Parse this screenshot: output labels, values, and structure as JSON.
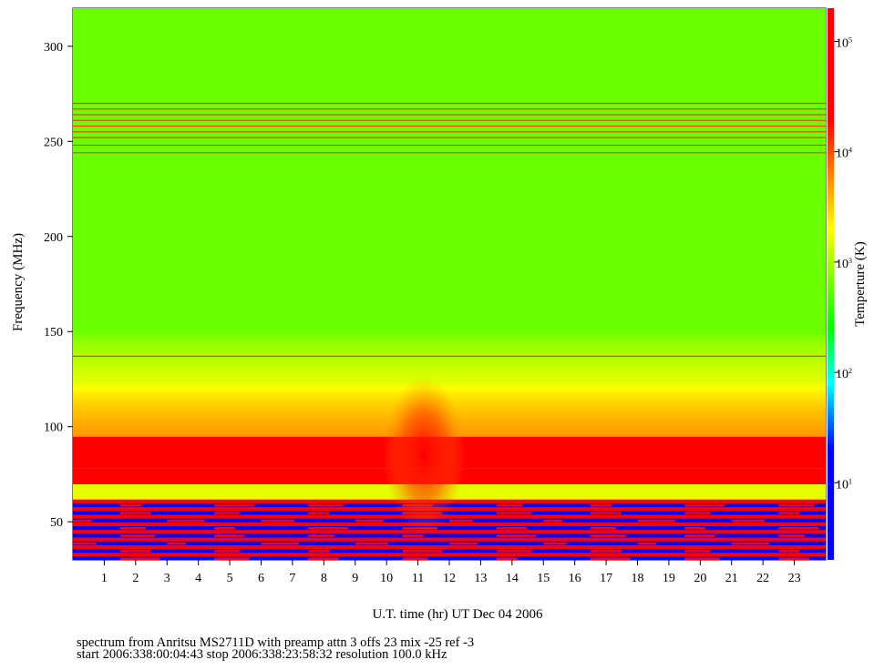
{
  "chart_data": {
    "type": "heatmap",
    "title": "",
    "xlabel": "U.T. time (hr) UT Dec 04 2006",
    "ylabel": "Frequency (MHz)",
    "colorbar_label": "Temperture (K)",
    "x_ticks": [
      1,
      2,
      3,
      4,
      5,
      6,
      7,
      8,
      9,
      10,
      11,
      12,
      13,
      14,
      15,
      16,
      17,
      18,
      19,
      20,
      21,
      22,
      23
    ],
    "y_ticks": [
      50,
      100,
      150,
      200,
      250,
      300
    ],
    "xlim": [
      0,
      24
    ],
    "ylim": [
      30,
      320
    ],
    "colorbar_scale": "log",
    "colorbar_range": [
      2,
      200000
    ],
    "colorbar_ticks": [
      {
        "value": 10,
        "base": "10",
        "exp": "1"
      },
      {
        "value": 100,
        "base": "10",
        "exp": "2"
      },
      {
        "value": 1000,
        "base": "10",
        "exp": "3"
      },
      {
        "value": 10000,
        "base": "10",
        "exp": "4"
      },
      {
        "value": 100000,
        "base": "10",
        "exp": "5"
      }
    ],
    "colormap": [
      "#0000ff",
      "#00ffff",
      "#00ff00",
      "#ffff00",
      "#ff0000"
    ],
    "features": {
      "background_level_K": 300,
      "low_band_MHz": [
        30,
        62
      ],
      "low_band_level_K": "alternating 10 and 100000",
      "strong_band_MHz": [
        70,
        95
      ],
      "strong_band_level_K": 20000,
      "horizontal_lines_MHz": [
        244,
        248,
        252,
        255,
        258,
        261,
        264,
        267,
        270,
        137,
        78
      ],
      "solar_burst": {
        "time_hr": 11.2,
        "freq_MHz": 85,
        "level_K": 50000
      }
    }
  },
  "footer": {
    "line1": "spectrum from Anritsu MS2711D with preamp attn 3 offs 23 mix -25 ref -3",
    "line2": "start 2006:338:00:04:43 stop 2006:338:23:58:32 resolution 100.0 kHz"
  }
}
